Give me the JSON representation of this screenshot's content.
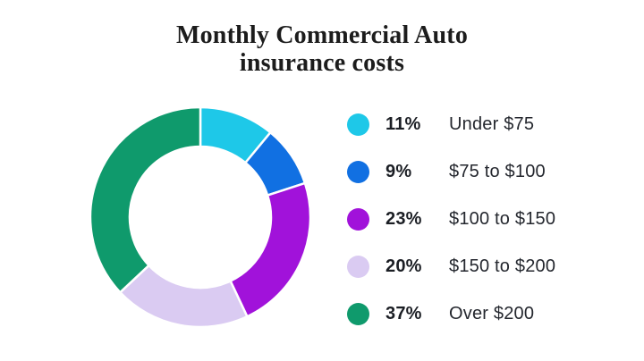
{
  "page": {
    "background": "#FFFFFF"
  },
  "title": {
    "line1": "Monthly Commercial Auto",
    "line2": "insurance costs"
  },
  "chart_data": {
    "type": "pie",
    "variant": "donut",
    "title": "Monthly Commercial Auto insurance costs",
    "categories": [
      "Under $75",
      "$75 to $100",
      "$100 to $150",
      "$150 to $200",
      "Over $200"
    ],
    "values": [
      11,
      9,
      23,
      20,
      37
    ],
    "unit": "%",
    "colors": [
      "#1EC8E8",
      "#1170E2",
      "#A112DA",
      "#DACBF2",
      "#0F9A6C"
    ],
    "start_angle_deg": 0,
    "direction": "clockwise",
    "donut_hole_ratio": 0.64,
    "segment_gap_color": "#FFFFFF",
    "legend_position": "right",
    "legend": [
      {
        "percent": "11%",
        "label": "Under $75",
        "color": "#1EC8E8"
      },
      {
        "percent": "9%",
        "label": "$75 to $100",
        "color": "#1170E2"
      },
      {
        "percent": "23%",
        "label": "$100 to $150",
        "color": "#A112DA"
      },
      {
        "percent": "20%",
        "label": "$150 to $200",
        "color": "#DACBF2"
      },
      {
        "percent": "37%",
        "label": "Over $200",
        "color": "#0F9A6C"
      }
    ]
  }
}
